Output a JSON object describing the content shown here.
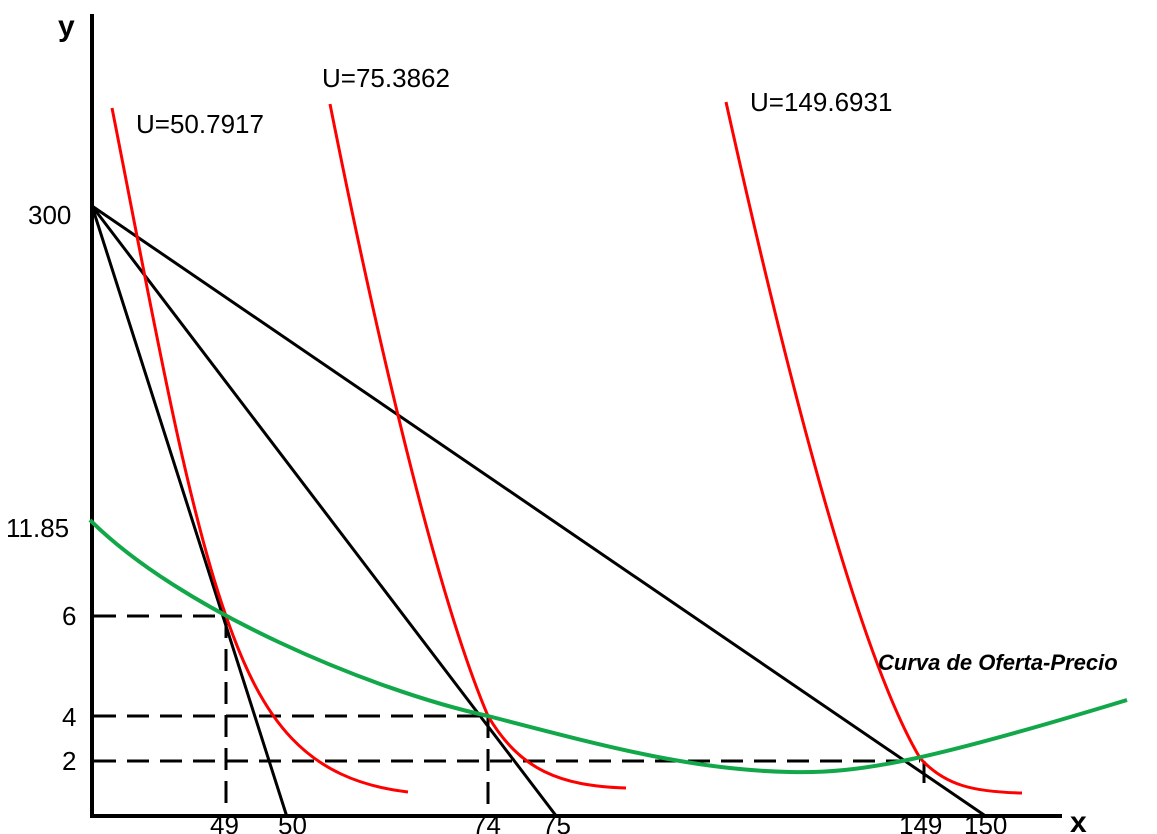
{
  "diagram": {
    "axis": {
      "y_label": "y",
      "x_label": "x",
      "y_ticks": [
        "300",
        "11.85",
        "6",
        "4",
        "2"
      ],
      "x_ticks": [
        "49",
        "50",
        "74",
        "75",
        "149",
        "150"
      ]
    },
    "indifference_curves": [
      {
        "label": "U=50.7917"
      },
      {
        "label": "U=75.3862"
      },
      {
        "label": "U=149.6931"
      }
    ],
    "offer_curve_label": "Curva de Oferta-Precio",
    "colors": {
      "axes": "#000000",
      "budget_lines": "#000000",
      "indifference": "#ff0000",
      "offer_curve": "#12a84a",
      "guides": "#000000"
    }
  }
}
